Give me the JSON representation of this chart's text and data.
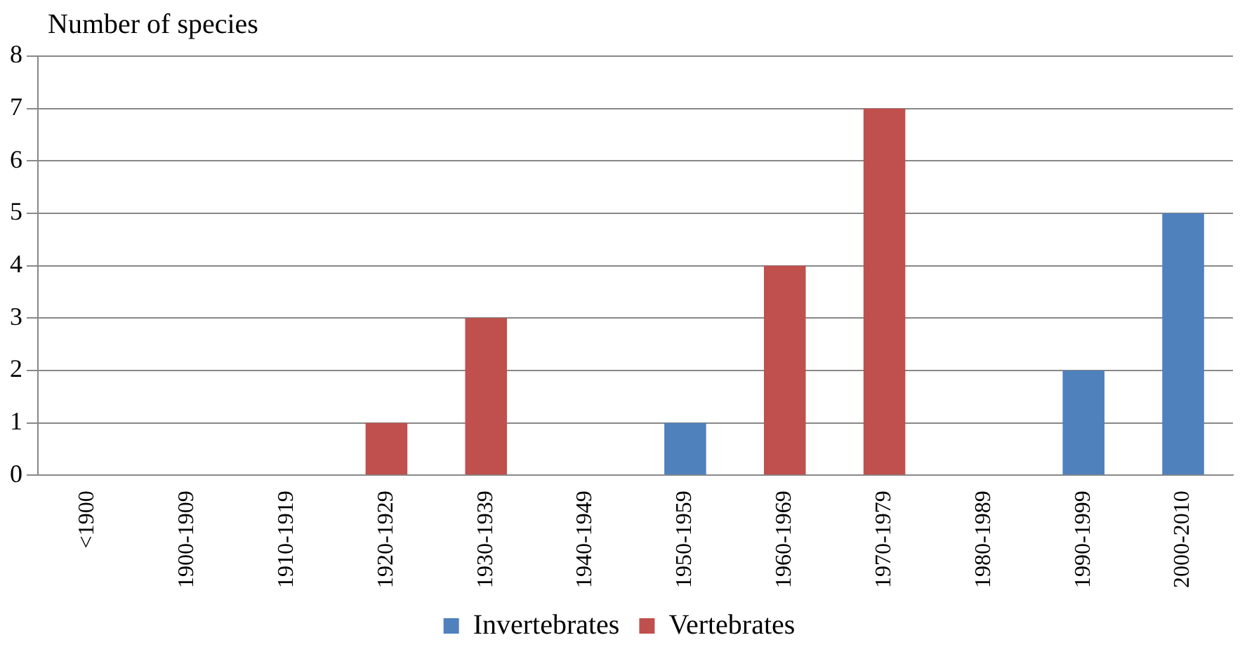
{
  "chart_data": {
    "type": "bar",
    "ylabel": "Number of species",
    "categories": [
      "<1900",
      "1900-1909",
      "1910-1919",
      "1920-1929",
      "1930-1939",
      "1940-1949",
      "1950-1959",
      "1960-1969",
      "1970-1979",
      "1980-1989",
      "1990-1999",
      "2000-2010"
    ],
    "series": [
      {
        "name": "Invertebrates",
        "color": "#4f81bd",
        "values": [
          0,
          0,
          0,
          0,
          0,
          0,
          1,
          0,
          0,
          0,
          2,
          5
        ]
      },
      {
        "name": "Vertebrates",
        "color": "#c0504d",
        "values": [
          0,
          0,
          0,
          1,
          3,
          0,
          0,
          4,
          7,
          0,
          0,
          0
        ]
      }
    ],
    "stacked": true,
    "ylim": [
      0,
      8
    ],
    "yticks": [
      0,
      1,
      2,
      3,
      4,
      5,
      6,
      7,
      8
    ],
    "grid": "y",
    "legend": "bottom"
  }
}
